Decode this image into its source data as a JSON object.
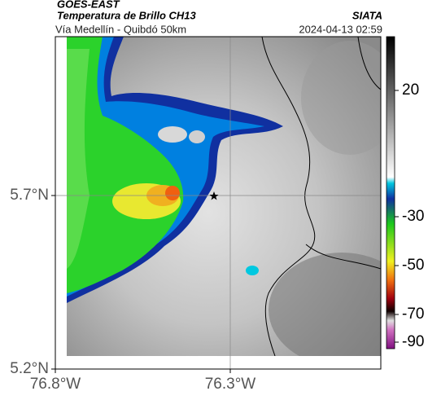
{
  "header": {
    "source": "GOES-EAST",
    "product": "Temperatura de Brillo CH13",
    "route": "Vía Medellín - Quibdó 50km",
    "agency": "SIATA",
    "timestamp": "2024-04-13 02:59"
  },
  "map": {
    "x_labels": [
      "76.8°W",
      "76.3°W"
    ],
    "y_labels": [
      "5.7°N",
      "5.2°N"
    ]
  },
  "colorbar": {
    "ticks": [
      20,
      -30,
      -50,
      -70,
      -90
    ]
  }
}
